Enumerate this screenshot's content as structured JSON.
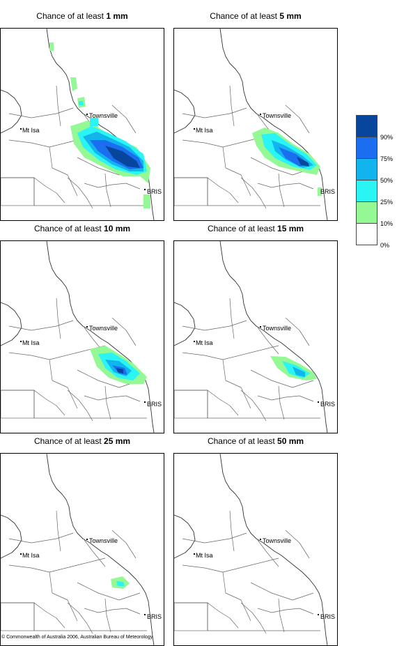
{
  "panels": [
    {
      "prefix": "Chance of at least ",
      "amount": "1 mm"
    },
    {
      "prefix": "Chance of at least ",
      "amount": "5 mm"
    },
    {
      "prefix": "Chance of at least ",
      "amount": "10 mm"
    },
    {
      "prefix": "Chance of at least ",
      "amount": "15 mm"
    },
    {
      "prefix": "Chance of at least ",
      "amount": "25 mm"
    },
    {
      "prefix": "Chance of at least ",
      "amount": "50 mm"
    }
  ],
  "places": {
    "townsville": "Townsville",
    "mt_isa": "Mt Isa",
    "brisbane": "BRIS"
  },
  "legend": {
    "labels": [
      "90%",
      "75%",
      "50%",
      "25%",
      "10%",
      "0%"
    ],
    "colors": [
      "#08459c",
      "#1c6ef0",
      "#12b4ee",
      "#2af4f4",
      "#94f894",
      "#ffffff"
    ]
  },
  "copyright": "© Commonwealth of Australia 2006, Australian Bureau of Meteorology"
}
